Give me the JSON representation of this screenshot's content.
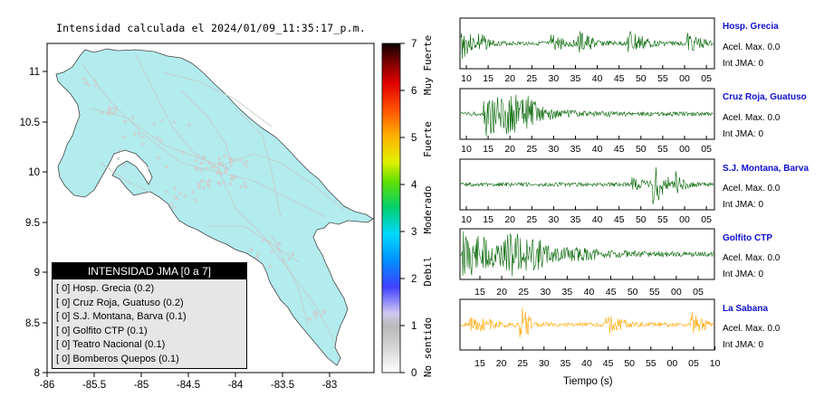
{
  "title": "Intensidad calculada el 2024/01/09_11:35:17_p.m.",
  "map": {
    "x_ticks": [
      "-86",
      "-85.5",
      "-85",
      "-84.5",
      "-84",
      "-83.5",
      "-83"
    ],
    "y_ticks": [
      "8",
      "8.5",
      "9",
      "9.5",
      "10",
      "10.5",
      "11"
    ],
    "land_color": "#b2ecee"
  },
  "colorbar": {
    "ticks": [
      "0",
      "1",
      "2",
      "3",
      "4",
      "5",
      "6",
      "7"
    ],
    "labels": [
      "No sentido",
      "Debil",
      "Moderado",
      "Fuerte",
      "Muy Fuerte"
    ]
  },
  "legend": {
    "header": "INTENSIDAD JMA [0 a 7]",
    "items": [
      "[ 0]  Hosp. Grecia (0.2)",
      "[ 0]  Cruz Roja, Guatuso (0.2)",
      "[ 0]  S.J. Montana, Barva (0.1)",
      "[ 0]  Golfito CTP (0.1)",
      "[ 0]  Teatro Nacional (0.1)",
      "[ 0]  Bomberos Quepos (0.1)"
    ]
  },
  "stations": [
    {
      "name": "Hosp. Grecia",
      "acel": "Acel. Max. 0.0",
      "int": "Int JMA: 0",
      "color": "#006400",
      "ticks": [
        "10",
        "15",
        "20",
        "25",
        "30",
        "35",
        "40",
        "45",
        "50",
        "55",
        "00",
        "05"
      ]
    },
    {
      "name": "Cruz Roja, Guatuso",
      "acel": "Acel. Max. 0.0",
      "int": "Int JMA: 0",
      "color": "#006400",
      "ticks": [
        "10",
        "15",
        "20",
        "25",
        "30",
        "35",
        "40",
        "45",
        "50",
        "55",
        "00",
        "05"
      ]
    },
    {
      "name": "S.J. Montana, Barva",
      "acel": "Acel. Max. 0.0",
      "int": "Int JMA: 0",
      "color": "#006400",
      "ticks": [
        "10",
        "15",
        "20",
        "25",
        "30",
        "35",
        "40",
        "45",
        "50",
        "55",
        "00",
        "05"
      ]
    },
    {
      "name": "Golfito CTP",
      "acel": "Acel. Max. 0.0",
      "int": "Int JMA: 0",
      "color": "#006400",
      "ticks": [
        "15",
        "20",
        "25",
        "30",
        "35",
        "40",
        "45",
        "50",
        "55",
        "00",
        "05"
      ]
    },
    {
      "name": "La Sabana",
      "acel": "Acel. Max. 0.0",
      "int": "Int JMA: 0",
      "color": "#ffa500",
      "ticks": [
        "15",
        "20",
        "25",
        "30",
        "35",
        "40",
        "45",
        "50",
        "55",
        "00",
        "05",
        "10"
      ]
    }
  ],
  "xlabel": "Tiempo (s)",
  "chart_data": [
    {
      "type": "heatmap",
      "title": "Intensidad calculada el 2024/01/09_11:35:17_p.m.",
      "xlim": [
        -86,
        -82.5
      ],
      "ylim": [
        8,
        11.3
      ],
      "legend_position": "bottom-left",
      "colorbar_range": [
        0,
        7
      ]
    },
    {
      "type": "line",
      "xlabel": "Tiempo (s)",
      "series": [
        {
          "name": "Hosp. Grecia",
          "peak_acel": 0.0,
          "intensity": 0
        },
        {
          "name": "Cruz Roja, Guatuso",
          "peak_acel": 0.0,
          "intensity": 0
        },
        {
          "name": "S.J. Montana, Barva",
          "peak_acel": 0.0,
          "intensity": 0
        },
        {
          "name": "Golfito CTP",
          "peak_acel": 0.0,
          "intensity": 0
        },
        {
          "name": "La Sabana",
          "peak_acel": 0.0,
          "intensity": 0
        }
      ]
    }
  ]
}
